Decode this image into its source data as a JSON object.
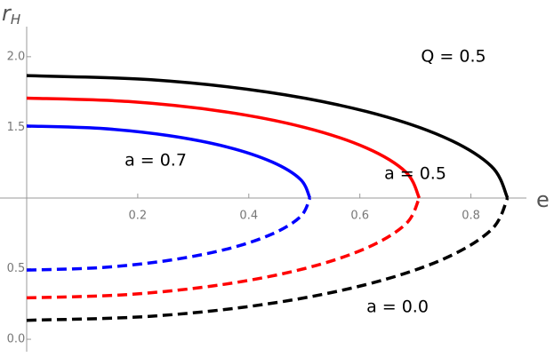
{
  "chart_data": {
    "type": "line",
    "y_label": "r",
    "y_label_sub": "H",
    "x_label": "e",
    "annotations": [
      "Q = 0.5",
      "a = 0.7",
      "a = 0.5",
      "a = 0.0"
    ],
    "xlim": [
      0,
      0.9
    ],
    "ylim": [
      -0.05,
      2.15
    ],
    "x_axis_at": 1,
    "xticks": [
      0.2,
      0.4,
      0.6,
      0.8
    ],
    "yticks": [
      {
        "value": 0,
        "label": "0.0"
      },
      0.5,
      1.5,
      {
        "value": 2,
        "label": "2.0"
      }
    ],
    "series": [
      {
        "color": "#000000",
        "style": "solid",
        "x": [
          0,
          0.224,
          0.433,
          0.612,
          0.75,
          0.837,
          0.866
        ],
        "values": [
          1.866,
          1.837,
          1.75,
          1.612,
          1.433,
          1.224,
          1.0
        ]
      },
      {
        "color": "#000000",
        "style": "dashed",
        "x": [
          0,
          0.224,
          0.433,
          0.612,
          0.75,
          0.837,
          0.866
        ],
        "values": [
          0.134,
          0.163,
          0.25,
          0.388,
          0.567,
          0.776,
          1.0
        ]
      },
      {
        "color": "#ff0000",
        "style": "solid",
        "x": [
          0,
          0.183,
          0.354,
          0.5,
          0.612,
          0.683,
          0.707
        ],
        "values": [
          1.707,
          1.683,
          1.612,
          1.5,
          1.354,
          1.183,
          1.0
        ]
      },
      {
        "color": "#ff0000",
        "style": "dashed",
        "x": [
          0,
          0.183,
          0.354,
          0.5,
          0.612,
          0.683,
          0.707
        ],
        "values": [
          0.293,
          0.317,
          0.388,
          0.5,
          0.646,
          0.817,
          1.0
        ]
      },
      {
        "color": "#0000ff",
        "style": "solid",
        "x": [
          0,
          0.132,
          0.255,
          0.361,
          0.442,
          0.493,
          0.51
        ],
        "values": [
          1.51,
          1.493,
          1.442,
          1.361,
          1.255,
          1.132,
          1.0
        ]
      },
      {
        "color": "#0000ff",
        "style": "dashed",
        "x": [
          0,
          0.132,
          0.255,
          0.361,
          0.442,
          0.493,
          0.51
        ],
        "values": [
          0.49,
          0.507,
          0.558,
          0.639,
          0.745,
          0.868,
          1.0
        ]
      }
    ]
  }
}
